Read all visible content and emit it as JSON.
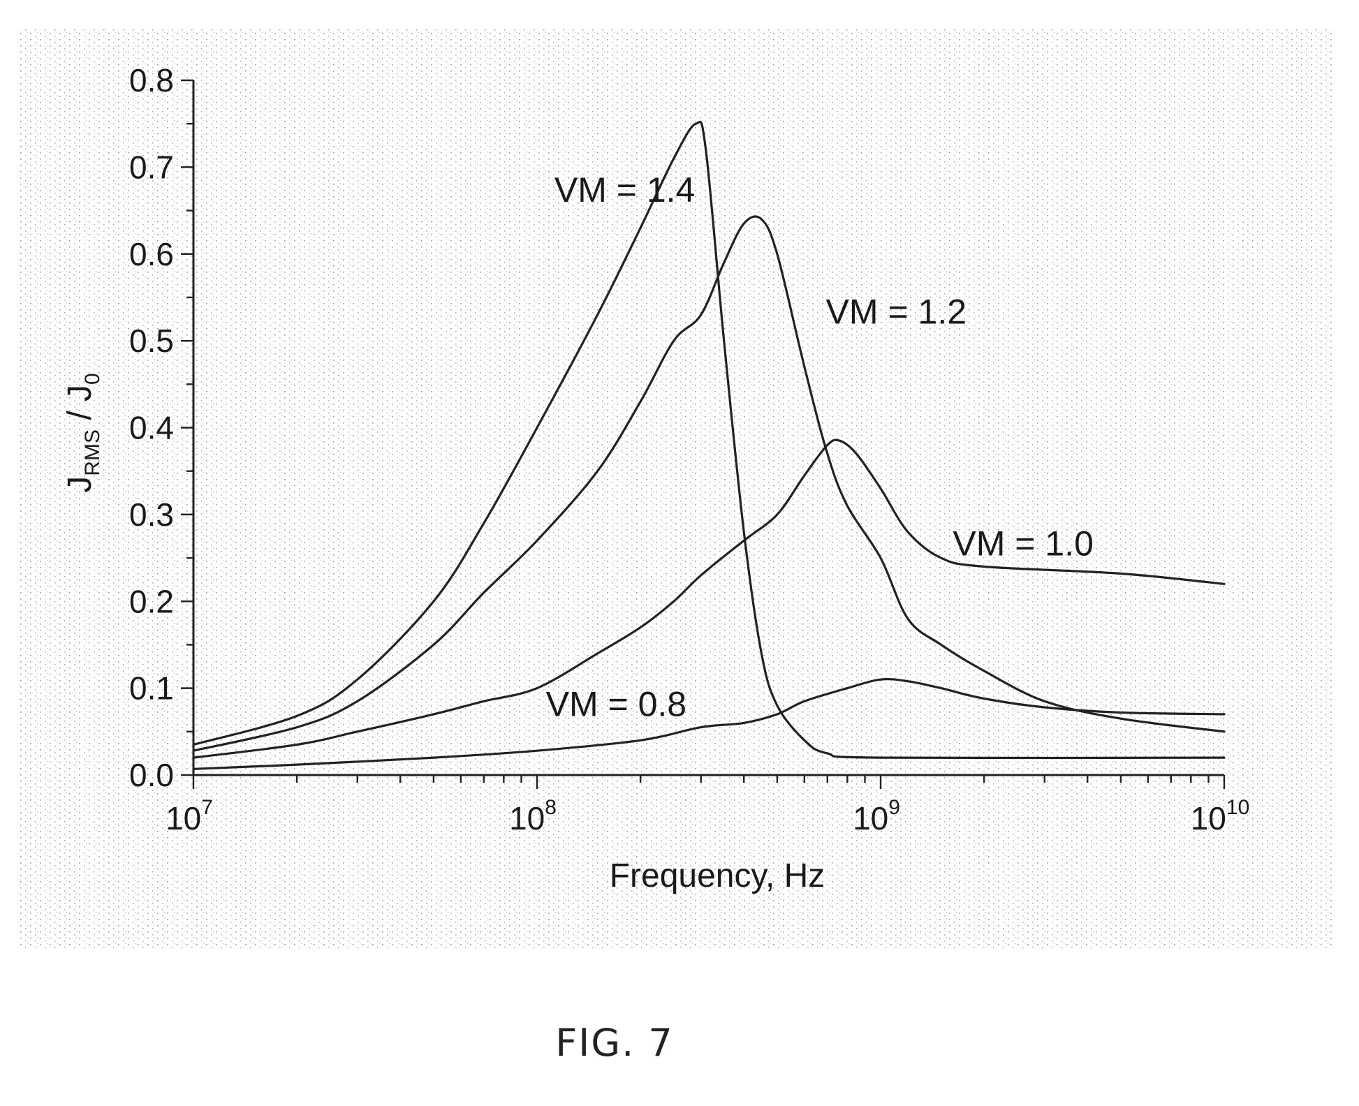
{
  "figure": {
    "caption": "FIG. 7"
  },
  "chart_data": {
    "type": "line",
    "xscale": "log",
    "xlim": [
      10000000,
      10000000000
    ],
    "ylim": [
      0.0,
      0.8
    ],
    "xlabel": "Frequency, Hz",
    "ylabel": {
      "main": "J",
      "main_sub": "RMS",
      "sep": " / ",
      "denom": "J",
      "denom_sub": "0"
    },
    "y_ticks": [
      0.0,
      0.1,
      0.2,
      0.3,
      0.4,
      0.5,
      0.6,
      0.7,
      0.8
    ],
    "y_tick_labels": [
      "0.0",
      "0.1",
      "0.2",
      "0.3",
      "0.4",
      "0.5",
      "0.6",
      "0.7",
      "0.8"
    ],
    "x_ticks": [
      {
        "value": 10000000,
        "base": "10",
        "exp": "7"
      },
      {
        "value": 100000000,
        "base": "10",
        "exp": "8"
      },
      {
        "value": 1000000000,
        "base": "10",
        "exp": "9"
      },
      {
        "value": 10000000000,
        "base": "10",
        "exp": "10"
      }
    ],
    "grid": false,
    "series": [
      {
        "name": "VM = 1.4",
        "points": [
          [
            10000000,
            0.035
          ],
          [
            20000000,
            0.068
          ],
          [
            30000000,
            0.11
          ],
          [
            50000000,
            0.2
          ],
          [
            70000000,
            0.29
          ],
          [
            100000000,
            0.4
          ],
          [
            150000000,
            0.53
          ],
          [
            200000000,
            0.63
          ],
          [
            250000000,
            0.71
          ],
          [
            290000000,
            0.75
          ],
          [
            310000000,
            0.72
          ],
          [
            350000000,
            0.5
          ],
          [
            400000000,
            0.28
          ],
          [
            450000000,
            0.14
          ],
          [
            500000000,
            0.08
          ],
          [
            600000000,
            0.04
          ],
          [
            700000000,
            0.025
          ],
          [
            1000000000,
            0.02
          ],
          [
            10000000000,
            0.02
          ]
        ]
      },
      {
        "name": "VM = 1.2",
        "points": [
          [
            10000000,
            0.028
          ],
          [
            20000000,
            0.055
          ],
          [
            30000000,
            0.085
          ],
          [
            50000000,
            0.15
          ],
          [
            70000000,
            0.21
          ],
          [
            100000000,
            0.27
          ],
          [
            150000000,
            0.35
          ],
          [
            200000000,
            0.43
          ],
          [
            250000000,
            0.5
          ],
          [
            300000000,
            0.53
          ],
          [
            350000000,
            0.59
          ],
          [
            400000000,
            0.635
          ],
          [
            450000000,
            0.64
          ],
          [
            500000000,
            0.6
          ],
          [
            600000000,
            0.47
          ],
          [
            700000000,
            0.37
          ],
          [
            800000000,
            0.31
          ],
          [
            1000000000,
            0.25
          ],
          [
            1200000000,
            0.18
          ],
          [
            1500000000,
            0.15
          ],
          [
            2000000000,
            0.12
          ],
          [
            3000000000,
            0.085
          ],
          [
            5000000000,
            0.065
          ],
          [
            10000000000,
            0.05
          ]
        ]
      },
      {
        "name": "VM = 1.0",
        "points": [
          [
            10000000,
            0.02
          ],
          [
            20000000,
            0.035
          ],
          [
            30000000,
            0.05
          ],
          [
            50000000,
            0.07
          ],
          [
            70000000,
            0.085
          ],
          [
            100000000,
            0.1
          ],
          [
            150000000,
            0.14
          ],
          [
            200000000,
            0.17
          ],
          [
            250000000,
            0.2
          ],
          [
            300000000,
            0.23
          ],
          [
            400000000,
            0.27
          ],
          [
            500000000,
            0.3
          ],
          [
            600000000,
            0.345
          ],
          [
            700000000,
            0.38
          ],
          [
            760000000,
            0.385
          ],
          [
            850000000,
            0.37
          ],
          [
            1000000000,
            0.33
          ],
          [
            1200000000,
            0.28
          ],
          [
            1500000000,
            0.25
          ],
          [
            2000000000,
            0.24
          ],
          [
            5000000000,
            0.232
          ],
          [
            10000000000,
            0.22
          ]
        ]
      },
      {
        "name": "VM = 0.8",
        "points": [
          [
            10000000,
            0.007
          ],
          [
            20000000,
            0.012
          ],
          [
            50000000,
            0.02
          ],
          [
            100000000,
            0.028
          ],
          [
            200000000,
            0.04
          ],
          [
            300000000,
            0.055
          ],
          [
            400000000,
            0.06
          ],
          [
            500000000,
            0.07
          ],
          [
            600000000,
            0.085
          ],
          [
            800000000,
            0.1
          ],
          [
            1000000000,
            0.11
          ],
          [
            1200000000,
            0.108
          ],
          [
            1500000000,
            0.1
          ],
          [
            2000000000,
            0.088
          ],
          [
            3000000000,
            0.078
          ],
          [
            5000000000,
            0.072
          ],
          [
            10000000000,
            0.07
          ]
        ]
      }
    ],
    "annotations": [
      {
        "text": "VM = 1.4",
        "x": 180000000,
        "y": 0.66
      },
      {
        "text": "VM = 1.2",
        "x": 1110000000,
        "y": 0.52
      },
      {
        "text": "VM = 1.0",
        "x": 2600000000,
        "y": 0.253
      },
      {
        "text": "VM = 0.8",
        "x": 170000000,
        "y": 0.068
      }
    ]
  }
}
